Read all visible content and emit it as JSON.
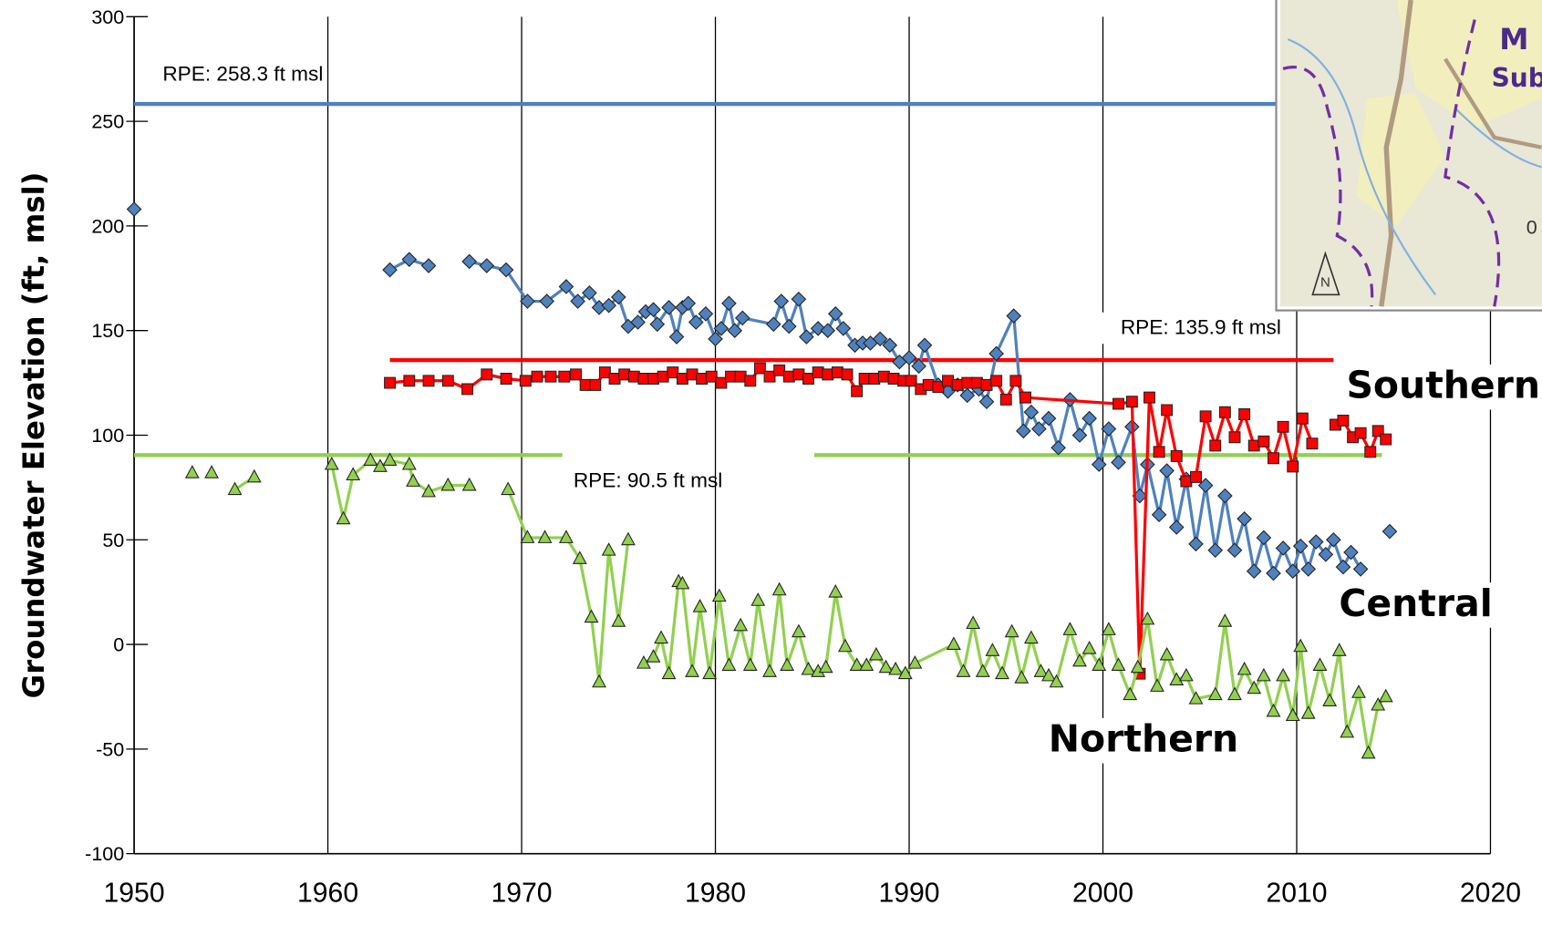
{
  "chart_data": {
    "type": "line",
    "y_label": "Groundwater Elevation (ft, msl)",
    "xlim": [
      1950,
      2020
    ],
    "xticks": [
      1950,
      1960,
      1970,
      1980,
      1990,
      2000,
      2010,
      2020
    ],
    "ylim": [
      -100,
      300
    ],
    "yticks": [
      -100,
      -50,
      0,
      50,
      100,
      150,
      200,
      250,
      300
    ],
    "grid": "x",
    "series": [
      {
        "name": "Central",
        "color": "#4f81bd",
        "marker": "diamond",
        "x": [
          1950.0,
          null,
          1963.2,
          1964.2,
          1965.2,
          null,
          1967.3,
          1968.2,
          1969.2,
          1970.3,
          1971.3,
          1972.3,
          1972.9,
          1973.5,
          1974.0,
          1974.5,
          1975.0,
          1975.5,
          1976.0,
          1976.4,
          1976.8,
          1977.0,
          1977.6,
          1978.0,
          1978.3,
          1978.6,
          1979.0,
          1979.5,
          1980.0,
          1980.3,
          1980.7,
          1981.0,
          1981.4,
          1983.0,
          1983.4,
          1983.8,
          1984.3,
          1984.7,
          1985.3,
          1985.8,
          1986.2,
          1986.6,
          1987.2,
          1987.6,
          1988.0,
          1988.5,
          1989.0,
          1989.5,
          1990.0,
          1990.5,
          1990.8,
          1991.5,
          1992.0,
          1992.5,
          1993.0,
          1993.6,
          1994.0,
          1994.5,
          1995.4,
          1995.9,
          1996.3,
          1996.7,
          1997.2,
          1997.7,
          1998.3,
          1998.8,
          1999.3,
          1999.8,
          2000.3,
          2000.8,
          2001.5,
          2001.9,
          2002.3,
          2002.9,
          2003.3,
          2003.8,
          2004.3,
          2004.8,
          2005.3,
          2005.8,
          2006.3,
          2006.8,
          2007.3,
          2007.8,
          2008.3,
          2008.8,
          2009.3,
          2009.8,
          2010.2,
          2010.6,
          2011.0,
          2011.5,
          2011.9,
          2012.4,
          2012.8,
          2013.3,
          null,
          2014.8
        ],
        "values": [
          208,
          null,
          179,
          184,
          181,
          null,
          183,
          181,
          179,
          164,
          164,
          171,
          164,
          168,
          161,
          162,
          166,
          152,
          154,
          159,
          160,
          153,
          161,
          147,
          161,
          163,
          154,
          158,
          146,
          151,
          163,
          150,
          156,
          153,
          164,
          152,
          165,
          147,
          151,
          150,
          158,
          151,
          143,
          144,
          144,
          146,
          143,
          135,
          137,
          133,
          143,
          124,
          121,
          124,
          119,
          122,
          116,
          139,
          157,
          102,
          111,
          103,
          108,
          94,
          117,
          100,
          108,
          86,
          103,
          87,
          104,
          71,
          86,
          62,
          83,
          56,
          79,
          48,
          76,
          45,
          71,
          45,
          60,
          35,
          51,
          34,
          46,
          35,
          47,
          36,
          49,
          43,
          50,
          37,
          44,
          36,
          null,
          54
        ]
      },
      {
        "name": "Southern",
        "color": "#ff0000",
        "marker": "square",
        "x": [
          1963.2,
          1964.2,
          1965.2,
          1966.2,
          1967.2,
          1968.2,
          1969.2,
          1970.2,
          1970.8,
          1971.5,
          1972.2,
          1972.8,
          1973.3,
          1973.8,
          1974.3,
          1974.8,
          1975.3,
          1975.8,
          1976.3,
          1976.8,
          1977.3,
          1977.8,
          1978.3,
          1978.8,
          1979.3,
          1979.8,
          1980.3,
          1980.8,
          1981.3,
          1981.8,
          1982.3,
          1982.8,
          1983.3,
          1983.8,
          1984.3,
          1984.8,
          1985.3,
          1985.8,
          1986.3,
          1986.8,
          1987.3,
          1987.7,
          1988.2,
          1988.7,
          1989.2,
          1989.7,
          1990.1,
          1990.6,
          1991.0,
          1991.5,
          1992.0,
          1992.5,
          1993.0,
          1993.5,
          1994.0,
          1994.5,
          1995.0,
          1995.5,
          1996.0,
          2000.8,
          2001.5,
          2001.9,
          2002.4,
          2002.9,
          2003.3,
          2003.8,
          2004.3,
          2004.8,
          2005.3,
          2005.8,
          2006.3,
          2006.8,
          2007.3,
          2007.8,
          2008.3,
          2008.8,
          2009.3,
          2009.8,
          2010.3,
          2010.8,
          null,
          2012.0,
          2012.4,
          2012.9,
          2013.3,
          2013.8,
          2014.2,
          2014.6
        ],
        "values": [
          125,
          126,
          126,
          126,
          122,
          129,
          127,
          126,
          128,
          128,
          128,
          129,
          124,
          124,
          130,
          127,
          129,
          128,
          127,
          127,
          128,
          130,
          127,
          129,
          127,
          128,
          125,
          128,
          128,
          126,
          132,
          128,
          131,
          128,
          129,
          127,
          130,
          129,
          130,
          129,
          121,
          127,
          127,
          128,
          127,
          126,
          126,
          122,
          124,
          123,
          126,
          124,
          125,
          125,
          124,
          126,
          117,
          126,
          118,
          115,
          116,
          -14,
          118,
          92,
          112,
          90,
          78,
          80,
          109,
          95,
          111,
          99,
          110,
          95,
          97,
          89,
          104,
          85,
          108,
          96,
          null,
          105,
          107,
          99,
          101,
          92,
          102,
          98
        ]
      },
      {
        "name": "Northern",
        "color": "#92d050",
        "marker": "triangle",
        "x": [
          1953.0,
          null,
          1954.0,
          null,
          1955.2,
          1956.2,
          null,
          1960.2,
          1960.8,
          1961.3,
          1962.2,
          1962.7,
          1963.2,
          1964.2,
          1964.4,
          1965.2,
          1966.2,
          1967.3,
          null,
          1969.3,
          1970.3,
          1971.2,
          1972.3,
          1973.0,
          1973.6,
          1974.0,
          1974.5,
          1975.0,
          1975.5,
          null,
          1976.3,
          1976.8,
          1977.2,
          1977.6,
          1978.1,
          1978.3,
          1978.8,
          1979.2,
          1979.7,
          1980.2,
          1980.7,
          1981.3,
          1981.8,
          1982.2,
          1982.8,
          1983.3,
          1983.7,
          1984.3,
          1984.8,
          1985.3,
          1985.7,
          1986.2,
          1986.7,
          1987.3,
          1987.8,
          1988.3,
          1988.8,
          1989.3,
          1989.8,
          1990.3,
          1992.3,
          1992.8,
          1993.3,
          1993.8,
          1994.3,
          1994.8,
          1995.3,
          1995.8,
          1996.3,
          1996.8,
          1997.2,
          1997.6,
          1998.3,
          1998.8,
          1999.3,
          1999.8,
          2000.3,
          2000.8,
          2001.4,
          2001.8,
          2002.3,
          2002.8,
          2003.3,
          2003.8,
          2004.3,
          2004.8,
          2005.8,
          2006.3,
          2006.8,
          2007.3,
          2007.8,
          2008.3,
          2008.8,
          2009.3,
          2009.8,
          2010.2,
          2010.6,
          2011.2,
          2011.7,
          2012.2,
          2012.6,
          2013.2,
          2013.7,
          2014.2,
          2014.6
        ],
        "values": [
          82,
          null,
          82,
          null,
          74,
          80,
          null,
          86,
          60,
          81,
          88,
          85,
          88,
          86,
          78,
          73,
          76,
          76,
          null,
          74,
          51,
          51,
          51,
          41,
          13,
          -18,
          45,
          11,
          50,
          null,
          -9,
          -6,
          3,
          -14,
          30,
          29,
          -13,
          18,
          -14,
          23,
          -10,
          9,
          -10,
          21,
          -13,
          26,
          -10,
          6,
          -12,
          -13,
          -11,
          25,
          -1,
          -10,
          -10,
          -5,
          -11,
          -12,
          -14,
          -9,
          0,
          -13,
          10,
          -13,
          -3,
          -14,
          6,
          -16,
          3,
          -13,
          -15,
          -18,
          7,
          -8,
          -2,
          -10,
          7,
          -10,
          -24,
          -11,
          12,
          -20,
          -5,
          -17,
          -15,
          -26,
          -24,
          11,
          -24,
          -12,
          -21,
          -15,
          -32,
          -15,
          -34,
          -1,
          -33,
          -10,
          -27,
          -3,
          -42,
          -23,
          -52,
          -29,
          -25
        ]
      }
    ],
    "rpe_lines": [
      {
        "label": "RPE: 258.3 ft msl",
        "value": 258.3,
        "color": "#4f81bd",
        "segments": [
          [
            1950,
            2009
          ]
        ]
      },
      {
        "label": "RPE: 135.9 ft msl",
        "value": 135.9,
        "color": "#ff0000",
        "segments": [
          [
            1963.2,
            2011.9
          ]
        ]
      },
      {
        "label": "RPE: 90.5 ft msl",
        "value": 90.5,
        "color": "#92d050",
        "segments": [
          [
            1950,
            1972.1
          ],
          [
            1985.1,
            2014.4
          ]
        ]
      }
    ],
    "inset": {
      "labels": [
        "M",
        "Sub",
        "N",
        "0"
      ]
    }
  }
}
